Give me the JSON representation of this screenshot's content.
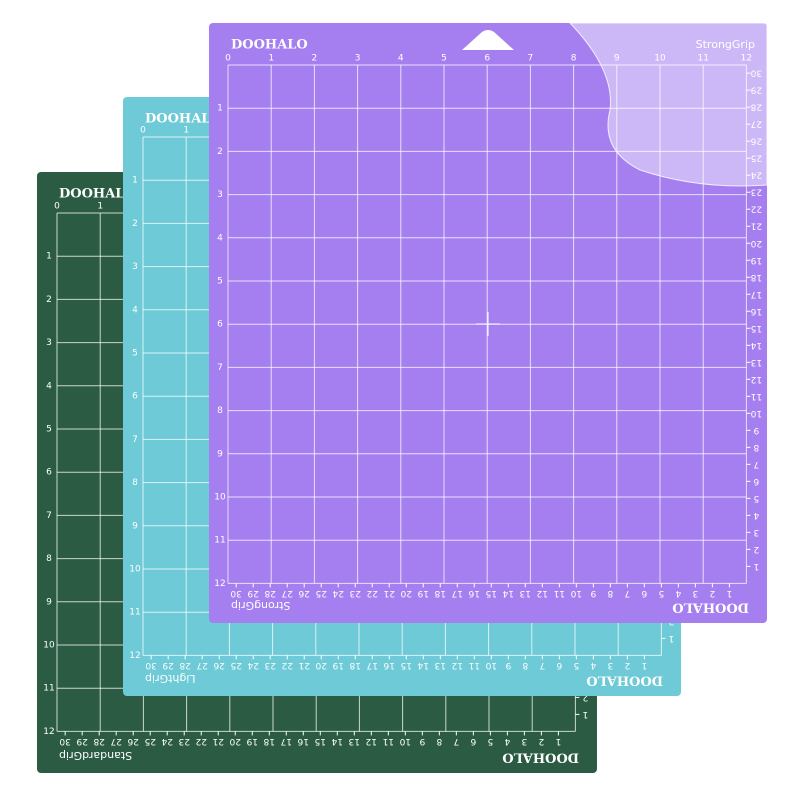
{
  "mats": [
    {
      "brand": "DOOHALO",
      "name": "StandardGrip",
      "color": "#2b5c43"
    },
    {
      "brand": "DOOHALO",
      "name": "LightGrip",
      "color": "#6dcad6"
    },
    {
      "brand": "DOOHALO",
      "name": "StrongGrip",
      "color": "#a57ff0"
    }
  ],
  "ruler": {
    "top": [
      0,
      1,
      2,
      3,
      4,
      5,
      6,
      7,
      8,
      9,
      10,
      11,
      12
    ],
    "side": [
      1,
      2,
      3,
      4,
      5,
      6,
      7,
      8,
      9,
      10,
      11,
      12
    ],
    "cm": [
      1,
      2,
      3,
      4,
      5,
      6,
      7,
      8,
      9,
      10,
      11,
      12,
      13,
      14,
      15,
      16,
      17,
      18,
      19,
      20,
      21,
      22,
      23,
      24,
      25,
      26,
      27,
      28,
      29,
      30
    ]
  }
}
